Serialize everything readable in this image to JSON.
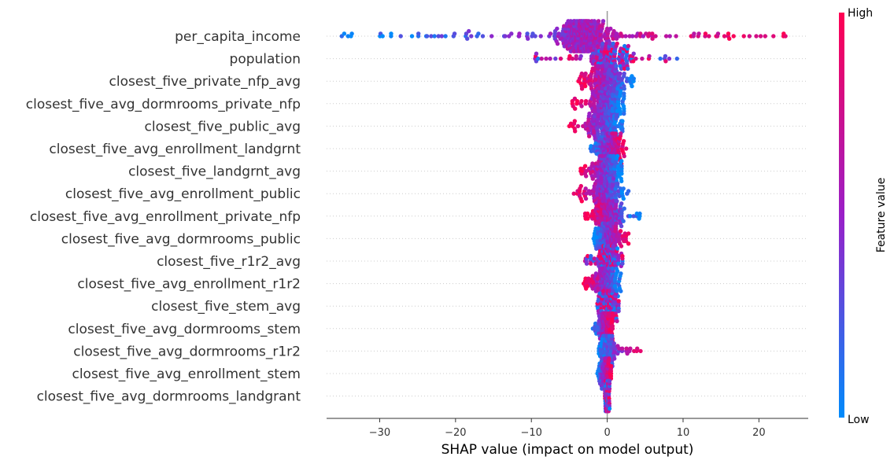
{
  "chart_data": {
    "type": "scatter",
    "subtype": "shap-beeswarm",
    "xlabel": "SHAP value (impact on model output)",
    "xlim": [
      -37,
      26.5
    ],
    "xticks": [
      -30,
      -20,
      -10,
      0,
      10,
      20
    ],
    "xtick_labels": [
      "−30",
      "−20",
      "−10",
      "0",
      "10",
      "20"
    ],
    "colorbar": {
      "title": "Feature value",
      "high_label": "High",
      "low_label": "Low",
      "low_color": "#008bfb",
      "high_color": "#ff0052",
      "mid_color": "#9a1fc8"
    },
    "grid": "horizontal dotted row guides",
    "features": [
      {
        "name": "per_capita_income",
        "min": -35,
        "max": 23.5,
        "center": -3,
        "spread": 1.6,
        "n": 420,
        "dir": 1
      },
      {
        "name": "population",
        "min": -9.5,
        "max": 9.2,
        "center": 0.3,
        "spread": 1.3,
        "n": 160,
        "dir": 0
      },
      {
        "name": "closest_five_private_nfp_avg",
        "min": -3.8,
        "max": 3.5,
        "center": -0.3,
        "spread": 1.2,
        "n": 170,
        "dir": -1
      },
      {
        "name": "closest_five_avg_dormrooms_private_nfp",
        "min": -4.6,
        "max": 2.2,
        "center": 0.0,
        "spread": 1.0,
        "n": 160,
        "dir": -1
      },
      {
        "name": "closest_five_public_avg",
        "min": -5.0,
        "max": 2.0,
        "center": -0.3,
        "spread": 1.2,
        "n": 170,
        "dir": -1
      },
      {
        "name": "closest_five_avg_enrollment_landgrnt",
        "min": -2.2,
        "max": 2.5,
        "center": 0.3,
        "spread": 0.9,
        "n": 160,
        "dir": 1
      },
      {
        "name": "closest_five_landgrnt_avg",
        "min": -3.5,
        "max": 1.9,
        "center": 0.0,
        "spread": 0.9,
        "n": 150,
        "dir": -1
      },
      {
        "name": "closest_five_avg_enrollment_public",
        "min": -4.4,
        "max": 2.8,
        "center": -0.2,
        "spread": 0.9,
        "n": 150,
        "dir": -1
      },
      {
        "name": "closest_five_avg_enrollment_private_nfp",
        "min": -2.9,
        "max": 4.3,
        "center": 0.2,
        "spread": 1.0,
        "n": 160,
        "dir": -1
      },
      {
        "name": "closest_five_avg_dormrooms_public",
        "min": -1.8,
        "max": 2.8,
        "center": 0.2,
        "spread": 0.8,
        "n": 150,
        "dir": 1
      },
      {
        "name": "closest_five_r1r2_avg",
        "min": -2.9,
        "max": 2.0,
        "center": 0.0,
        "spread": 0.8,
        "n": 140,
        "dir": 0
      },
      {
        "name": "closest_five_avg_enrollment_r1r2",
        "min": -3.1,
        "max": 1.8,
        "center": 0.0,
        "spread": 0.8,
        "n": 140,
        "dir": -1
      },
      {
        "name": "closest_five_stem_avg",
        "min": -1.3,
        "max": 1.5,
        "center": 0.1,
        "spread": 0.6,
        "n": 120,
        "dir": 0
      },
      {
        "name": "closest_five_avg_dormrooms_stem",
        "min": -1.9,
        "max": 0.7,
        "center": -0.1,
        "spread": 0.5,
        "n": 110,
        "dir": 1
      },
      {
        "name": "closest_five_avg_dormrooms_r1r2",
        "min": -1.1,
        "max": 4.4,
        "center": 0.0,
        "spread": 0.5,
        "n": 100,
        "dir": 1
      },
      {
        "name": "closest_five_avg_enrollment_stem",
        "min": -1.3,
        "max": 0.5,
        "center": -0.1,
        "spread": 0.4,
        "n": 90,
        "dir": 1
      },
      {
        "name": "closest_five_avg_dormrooms_landgrant",
        "min": -0.3,
        "max": 0.3,
        "center": 0.0,
        "spread": 0.15,
        "n": 80,
        "dir": 0
      }
    ]
  }
}
